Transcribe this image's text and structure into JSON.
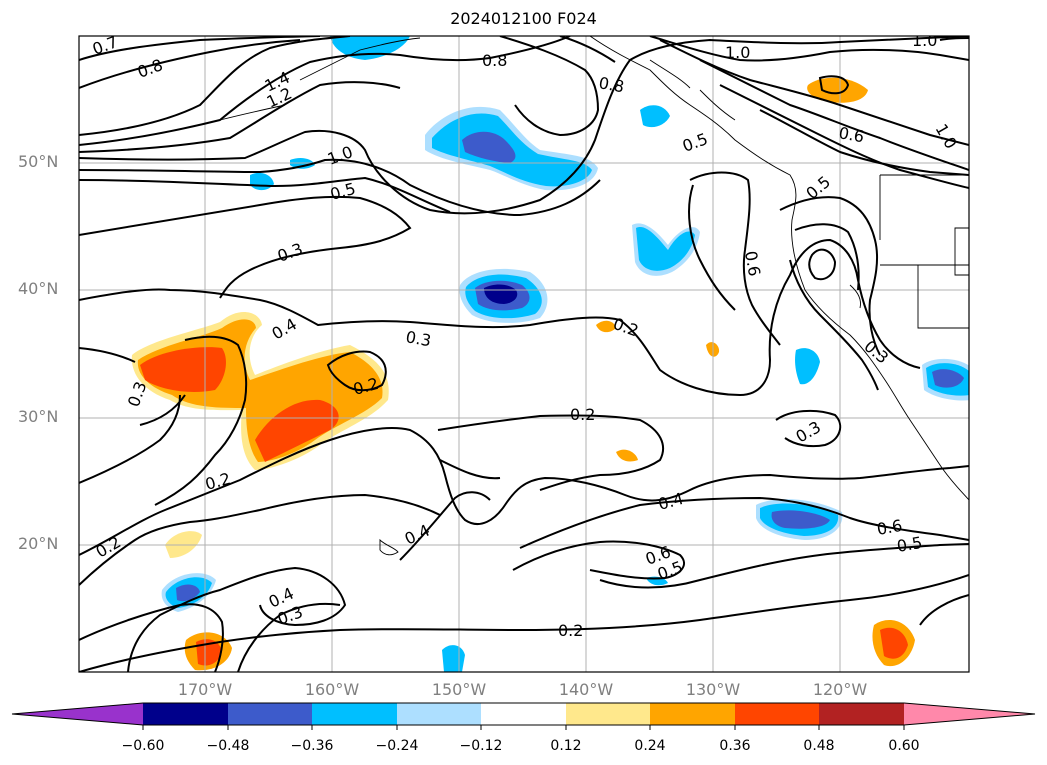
{
  "title": "2024012100 F024",
  "map": {
    "lat_labels": [
      "50°N",
      "40°N",
      "30°N",
      "20°N"
    ],
    "lon_labels": [
      "170°W",
      "160°W",
      "150°W",
      "140°W",
      "130°W",
      "120°W"
    ],
    "contour_labels": [
      "0.7",
      "0.8",
      "1.4",
      "1.2",
      "1.0",
      "0.5",
      "0.3",
      "0.4",
      "0.3",
      "0.2",
      "0.3",
      "0.2",
      "0.2",
      "0.2",
      "0.4",
      "0.4",
      "0.3",
      "0.4",
      "0.6",
      "0.5",
      "0.2",
      "0.6",
      "0.5",
      "1.0",
      "0.8",
      "0.6",
      "1.0",
      "0.5",
      "0.5",
      "0.6",
      "0.3",
      "0.3",
      "0.2",
      "0.8",
      "1.0"
    ]
  },
  "colorbar": {
    "ticks": [
      "−0.60",
      "−0.48",
      "−0.36",
      "−0.24",
      "−0.12",
      "0.12",
      "0.24",
      "0.36",
      "0.48",
      "0.60"
    ],
    "colors": [
      "#9932CC",
      "#00008B",
      "#3D5BCB",
      "#00BFFF",
      "#ADDFFF",
      "#FFFFFF",
      "#FFE88C",
      "#FFA500",
      "#FF4500",
      "#B22222",
      "#FF88AA"
    ]
  }
}
